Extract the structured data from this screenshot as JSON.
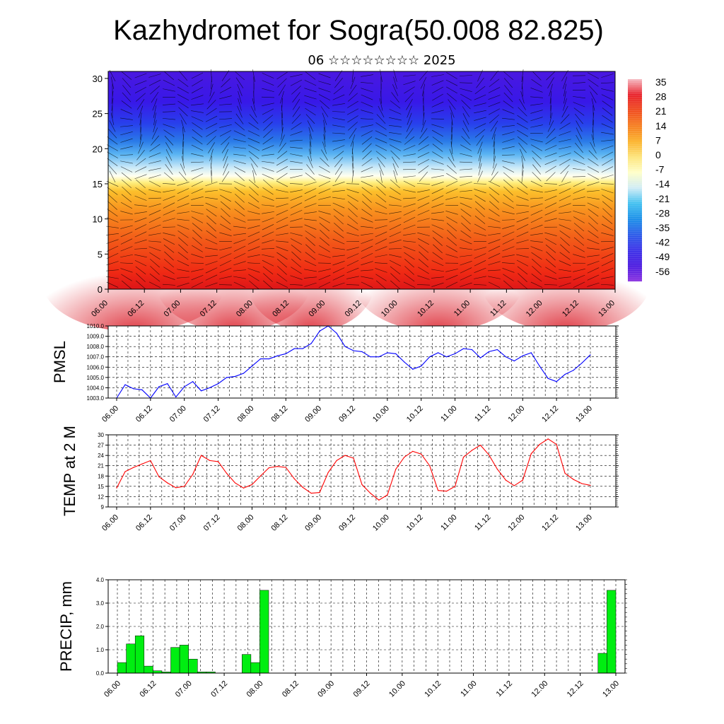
{
  "title": "Kazhydromet for Sogra(50.008 82.825)",
  "subtitle": "06 ☆☆☆☆☆☆☆☆ 2025",
  "time_labels": [
    "06.00",
    "06.12",
    "07.00",
    "07.12",
    "08.00",
    "08.12",
    "09.00",
    "09.12",
    "10.00",
    "10.12",
    "11.00",
    "11.12",
    "12.00",
    "12.12",
    "13.00"
  ],
  "chart_data": [
    {
      "type": "heatmap",
      "title": "",
      "xlabel": "",
      "ylabel": "",
      "ylim": [
        0,
        31
      ],
      "yticks": [
        0,
        5,
        10,
        15,
        20,
        25,
        30
      ],
      "colorbar": {
        "labels": [
          "35",
          "28",
          "21",
          "14",
          "7",
          "0",
          "-7",
          "-14",
          "-21",
          "-28",
          "-35",
          "-42",
          "-49",
          "-56"
        ],
        "colors": [
          "#f5b8c0",
          "#e8202a",
          "#f04a1c",
          "#f67d1e",
          "#fbb22a",
          "#fde47a",
          "#ffffc8",
          "#d0ecf5",
          "#40c0f0",
          "#1a8ee8",
          "#2a5ae8",
          "#3a30e8",
          "#4a1ae0",
          "#8a30e0"
        ]
      },
      "wind_arrows": true
    },
    {
      "type": "line",
      "ylabel": "PMSL",
      "ylim": [
        1003.0,
        1010.0
      ],
      "yticks": [
        "1003.0",
        "1004.0",
        "1005.0",
        "1006.0",
        "1007.0",
        "1008.0",
        "1009.0",
        "1010.0"
      ],
      "color": "#0000ff",
      "values": [
        1003.0,
        1004.3,
        1003.9,
        1003.8,
        1003.0,
        1004.1,
        1004.4,
        1003.1,
        1004.1,
        1004.6,
        1003.7,
        1004.0,
        1004.4,
        1005.0,
        1005.1,
        1005.4,
        1006.1,
        1006.8,
        1006.8,
        1007.1,
        1007.3,
        1007.8,
        1007.8,
        1008.3,
        1009.5,
        1010.0,
        1009.3,
        1008.0,
        1007.6,
        1007.5,
        1007.0,
        1007.0,
        1007.4,
        1007.3,
        1006.5,
        1005.8,
        1006.1,
        1007.0,
        1007.4,
        1007.0,
        1007.3,
        1007.8,
        1007.7,
        1006.9,
        1007.5,
        1007.7,
        1007.0,
        1006.6,
        1007.1,
        1007.4,
        1006.1,
        1004.9,
        1004.6,
        1005.3,
        1005.7,
        1006.4,
        1007.2
      ]
    },
    {
      "type": "line",
      "ylabel": "TEMP at 2 M",
      "ylim": [
        9,
        30
      ],
      "yticks": [
        "9",
        "12",
        "15",
        "18",
        "21",
        "24",
        "27",
        "30"
      ],
      "color": "#ff0000",
      "values": [
        14.5,
        19.3,
        20.5,
        21.5,
        22.5,
        17.8,
        16.0,
        14.6,
        15.0,
        18.5,
        24.0,
        22.5,
        22.2,
        18.8,
        16.0,
        14.5,
        15.5,
        18.0,
        20.4,
        20.8,
        20.5,
        17.2,
        14.7,
        13.0,
        13.2,
        19.0,
        22.5,
        24.0,
        23.2,
        15.5,
        13.0,
        11.0,
        12.5,
        20.0,
        23.5,
        25.2,
        24.4,
        21.0,
        13.8,
        13.6,
        15.0,
        23.5,
        25.5,
        27.0,
        24.2,
        20.0,
        16.8,
        15.2,
        16.8,
        24.5,
        27.2,
        28.8,
        27.2,
        18.8,
        17.0,
        15.8,
        15.3
      ]
    },
    {
      "type": "bar",
      "ylabel": "PRECIP, mm",
      "ylim": [
        0.0,
        4.0
      ],
      "yticks": [
        "0.0",
        "1.0",
        "2.0",
        "3.0",
        "4.0"
      ],
      "color": "#00ee11",
      "values": [
        0.45,
        1.25,
        1.6,
        0.3,
        0.1,
        0.05,
        1.1,
        1.2,
        0.6,
        0.05,
        0.05,
        0.0,
        0.0,
        0.0,
        0.8,
        0.45,
        3.55,
        0.0,
        0.0,
        0.0,
        0.0,
        0.0,
        0.0,
        0.0,
        0.0,
        0.0,
        0.0,
        0.0,
        0.0,
        0.0,
        0.0,
        0.0,
        0.0,
        0.0,
        0.0,
        0.0,
        0.0,
        0.0,
        0.0,
        0.0,
        0.0,
        0.0,
        0.0,
        0.0,
        0.0,
        0.0,
        0.0,
        0.0,
        0.0,
        0.0,
        0.0,
        0.0,
        0.0,
        0.0,
        0.85,
        3.55
      ]
    }
  ]
}
